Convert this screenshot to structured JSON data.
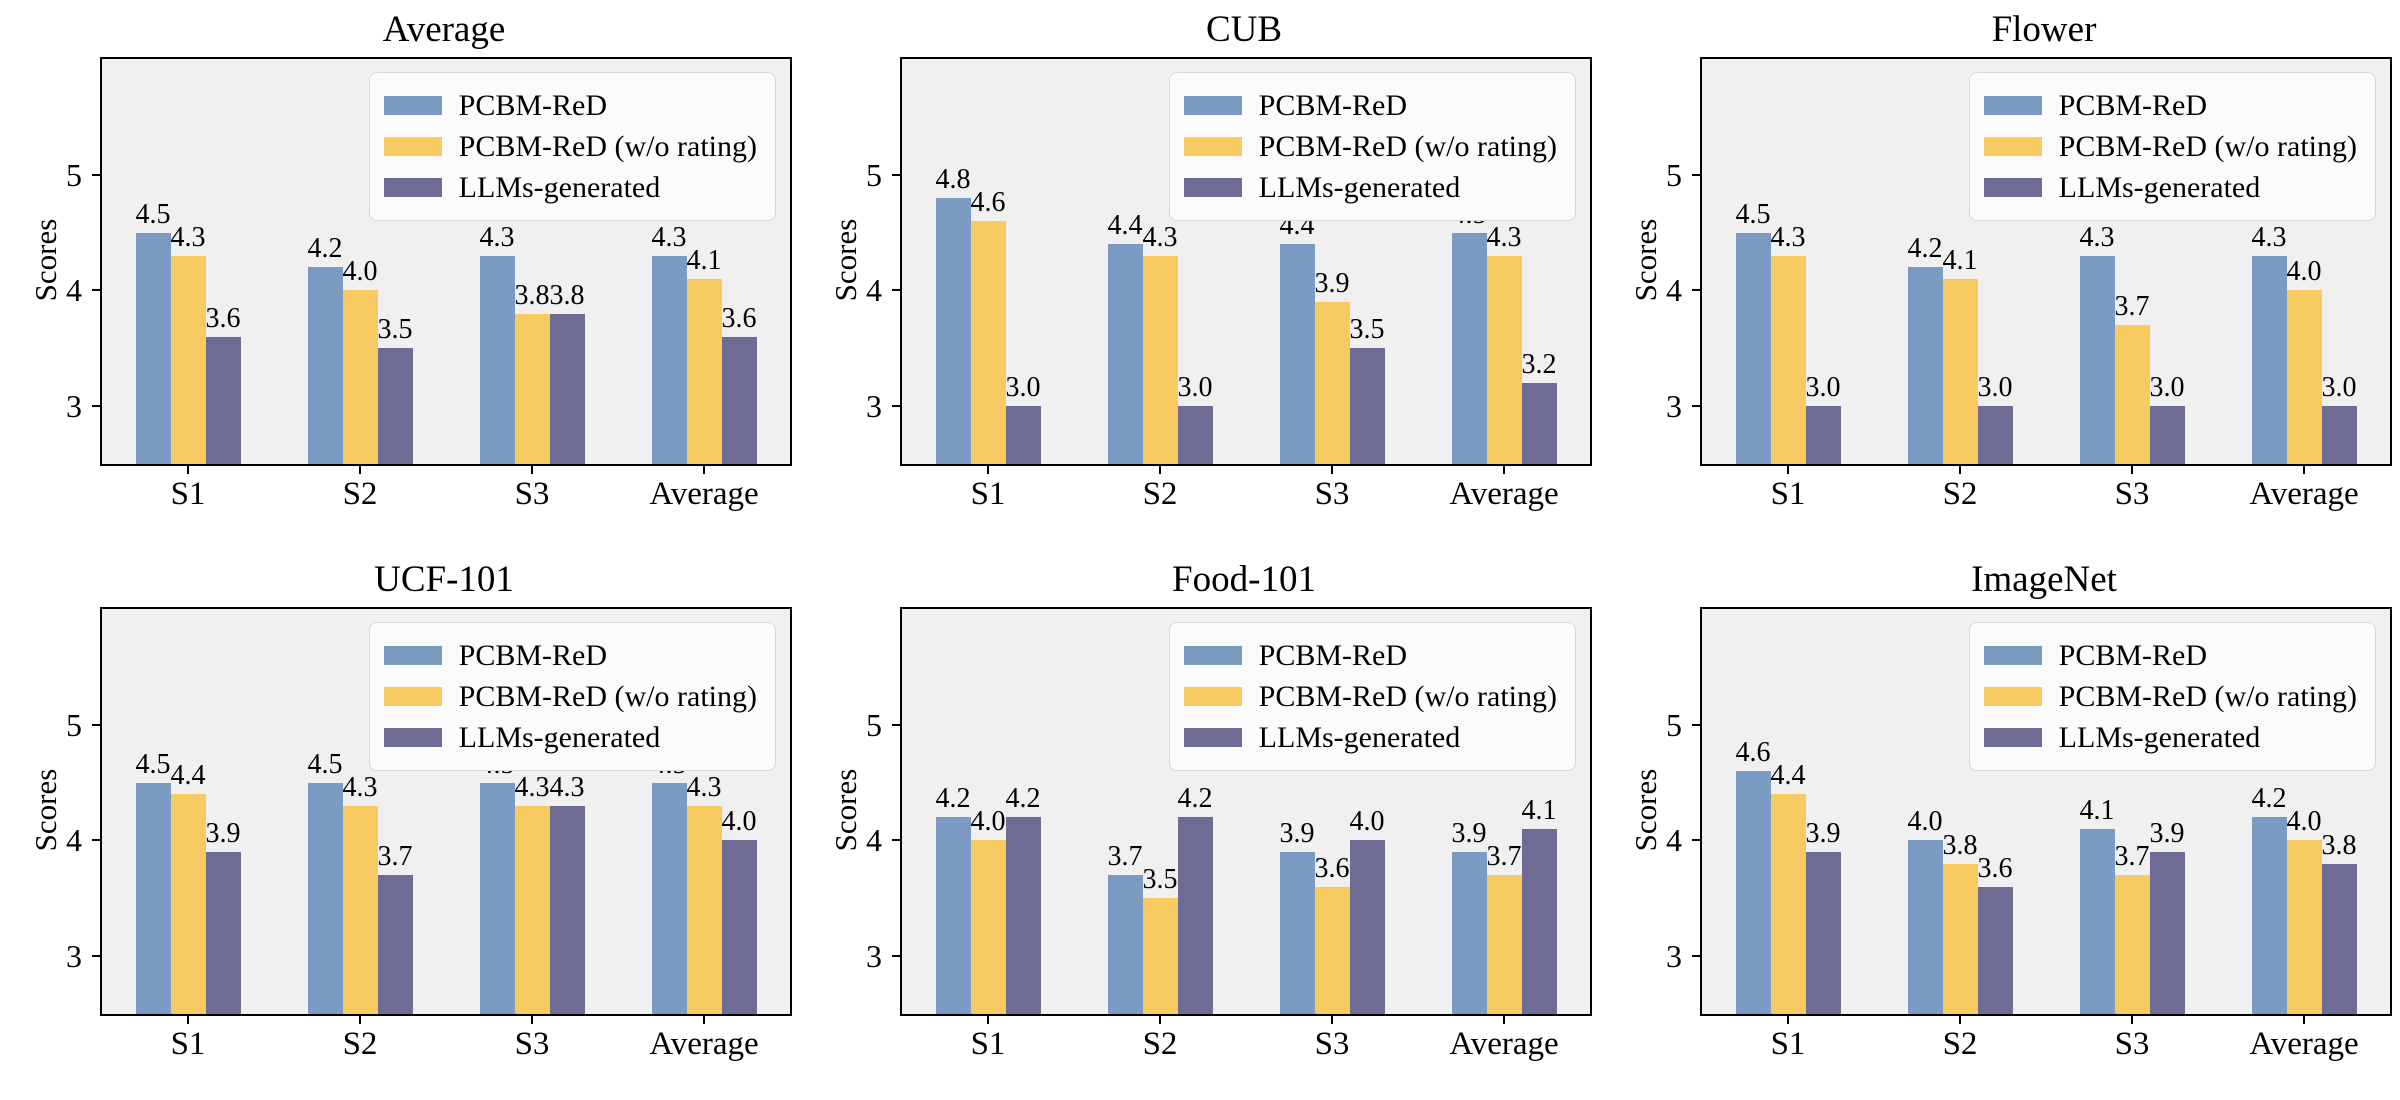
{
  "figure": {
    "background": "#ffffff",
    "plot_background": "#f0f0f0",
    "spine_color": "#000000",
    "legend_background": "#fbfbfb",
    "layout": "2 rows x 3 columns of bar charts"
  },
  "chart_data": [
    {
      "type": "bar",
      "title": "Average",
      "ylabel": "Scores",
      "xlabel": "",
      "categories": [
        "S1",
        "S2",
        "S3",
        "Average"
      ],
      "yticks": [
        3,
        4,
        5
      ],
      "ylim": [
        2.5,
        6.0
      ],
      "grid": false,
      "legend_position": "upper right",
      "series": [
        {
          "name": "PCBM-ReD",
          "color": "#7b9bc2",
          "values": [
            4.5,
            4.2,
            4.3,
            4.3
          ]
        },
        {
          "name": "PCBM-ReD (w/o rating)",
          "color": "#f8cb62",
          "values": [
            4.3,
            4.0,
            3.8,
            4.1
          ]
        },
        {
          "name": "LLMs-generated",
          "color": "#6e6b94",
          "values": [
            3.6,
            3.5,
            3.8,
            3.6
          ]
        }
      ]
    },
    {
      "type": "bar",
      "title": "CUB",
      "ylabel": "Scores",
      "xlabel": "",
      "categories": [
        "S1",
        "S2",
        "S3",
        "Average"
      ],
      "yticks": [
        3,
        4,
        5
      ],
      "ylim": [
        2.5,
        6.0
      ],
      "grid": false,
      "legend_position": "upper right",
      "series": [
        {
          "name": "PCBM-ReD",
          "color": "#7b9bc2",
          "values": [
            4.8,
            4.4,
            4.4,
            4.5
          ]
        },
        {
          "name": "PCBM-ReD (w/o rating)",
          "color": "#f8cb62",
          "values": [
            4.6,
            4.3,
            3.9,
            4.3
          ]
        },
        {
          "name": "LLMs-generated",
          "color": "#6e6b94",
          "values": [
            3.0,
            3.0,
            3.5,
            3.2
          ]
        }
      ]
    },
    {
      "type": "bar",
      "title": "Flower",
      "ylabel": "Scores",
      "xlabel": "",
      "categories": [
        "S1",
        "S2",
        "S3",
        "Average"
      ],
      "yticks": [
        3,
        4,
        5
      ],
      "ylim": [
        2.5,
        6.0
      ],
      "grid": false,
      "legend_position": "upper right",
      "series": [
        {
          "name": "PCBM-ReD",
          "color": "#7b9bc2",
          "values": [
            4.5,
            4.2,
            4.3,
            4.3
          ]
        },
        {
          "name": "PCBM-ReD (w/o rating)",
          "color": "#f8cb62",
          "values": [
            4.3,
            4.1,
            3.7,
            4.0
          ]
        },
        {
          "name": "LLMs-generated",
          "color": "#6e6b94",
          "values": [
            3.0,
            3.0,
            3.0,
            3.0
          ]
        }
      ]
    },
    {
      "type": "bar",
      "title": "UCF-101",
      "ylabel": "Scores",
      "xlabel": "",
      "categories": [
        "S1",
        "S2",
        "S3",
        "Average"
      ],
      "yticks": [
        3,
        4,
        5
      ],
      "ylim": [
        2.5,
        6.0
      ],
      "grid": false,
      "legend_position": "upper right",
      "series": [
        {
          "name": "PCBM-ReD",
          "color": "#7b9bc2",
          "values": [
            4.5,
            4.5,
            4.5,
            4.5
          ]
        },
        {
          "name": "PCBM-ReD (w/o rating)",
          "color": "#f8cb62",
          "values": [
            4.4,
            4.3,
            4.3,
            4.3
          ]
        },
        {
          "name": "LLMs-generated",
          "color": "#6e6b94",
          "values": [
            3.9,
            3.7,
            4.3,
            4.0
          ]
        }
      ]
    },
    {
      "type": "bar",
      "title": "Food-101",
      "ylabel": "Scores",
      "xlabel": "",
      "categories": [
        "S1",
        "S2",
        "S3",
        "Average"
      ],
      "yticks": [
        3,
        4,
        5
      ],
      "ylim": [
        2.5,
        6.0
      ],
      "grid": false,
      "legend_position": "upper right",
      "series": [
        {
          "name": "PCBM-ReD",
          "color": "#7b9bc2",
          "values": [
            4.2,
            3.7,
            3.9,
            3.9
          ]
        },
        {
          "name": "PCBM-ReD (w/o rating)",
          "color": "#f8cb62",
          "values": [
            4.0,
            3.5,
            3.6,
            3.7
          ]
        },
        {
          "name": "LLMs-generated",
          "color": "#6e6b94",
          "values": [
            4.2,
            4.2,
            4.0,
            4.1
          ]
        }
      ]
    },
    {
      "type": "bar",
      "title": "ImageNet",
      "ylabel": "Scores",
      "xlabel": "",
      "categories": [
        "S1",
        "S2",
        "S3",
        "Average"
      ],
      "yticks": [
        3,
        4,
        5
      ],
      "ylim": [
        2.5,
        6.0
      ],
      "grid": false,
      "legend_position": "upper right",
      "series": [
        {
          "name": "PCBM-ReD",
          "color": "#7b9bc2",
          "values": [
            4.6,
            4.0,
            4.1,
            4.2
          ]
        },
        {
          "name": "PCBM-ReD (w/o rating)",
          "color": "#f8cb62",
          "values": [
            4.4,
            3.8,
            3.7,
            4.0
          ]
        },
        {
          "name": "LLMs-generated",
          "color": "#6e6b94",
          "values": [
            3.9,
            3.6,
            3.9,
            3.8
          ]
        }
      ]
    }
  ]
}
